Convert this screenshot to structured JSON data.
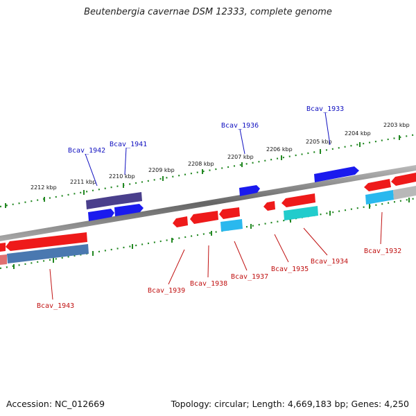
{
  "title": "Beutenbergia cavernae DSM 12333, complete genome",
  "footer": {
    "accession": "Accession: NC_012669",
    "topology": "Topology: circular; Length: 4,669,183 bp; Genes: 4,250"
  },
  "colors": {
    "forward_gene": "#1a1aee",
    "forward_gene_dark": "#4a3f8c",
    "reverse_gene": "#ee1a1a",
    "reverse_rna": "#2ab8ee",
    "reverse_rna_cyan": "#22cccc",
    "reverse_rna_steel": "#4a78b0",
    "axis": "#888888",
    "ticks": "#228822",
    "label_blue": "#1010c0",
    "label_red": "#c01010"
  },
  "scale_labels": [
    {
      "id": "k2212",
      "text": "2212 kbp"
    },
    {
      "id": "k2211",
      "text": "2211 kbp"
    },
    {
      "id": "k2210",
      "text": "2210 kbp"
    },
    {
      "id": "k2209",
      "text": "2209 kbp"
    },
    {
      "id": "k2208",
      "text": "2208 kbp"
    },
    {
      "id": "k2207",
      "text": "2207 kbp"
    },
    {
      "id": "k2206",
      "text": "2206 kbp"
    },
    {
      "id": "k2205",
      "text": "2205 kbp"
    },
    {
      "id": "k2204",
      "text": "2204 kbp"
    },
    {
      "id": "k2203",
      "text": "2203 kbp"
    }
  ],
  "gene_labels": [
    {
      "id": "g1942",
      "text": "Bcav_1942"
    },
    {
      "id": "g1941",
      "text": "Bcav_1941"
    },
    {
      "id": "g1936",
      "text": "Bcav_1936"
    },
    {
      "id": "g1933",
      "text": "Bcav_1933"
    },
    {
      "id": "g1943",
      "text": "Bcav_1943"
    },
    {
      "id": "g1939",
      "text": "Bcav_1939"
    },
    {
      "id": "g1938",
      "text": "Bcav_1938"
    },
    {
      "id": "g1937",
      "text": "Bcav_1937"
    },
    {
      "id": "g1935",
      "text": "Bcav_1935"
    },
    {
      "id": "g1934",
      "text": "Bcav_1934"
    },
    {
      "id": "g1932",
      "text": "Bcav_1932"
    }
  ]
}
